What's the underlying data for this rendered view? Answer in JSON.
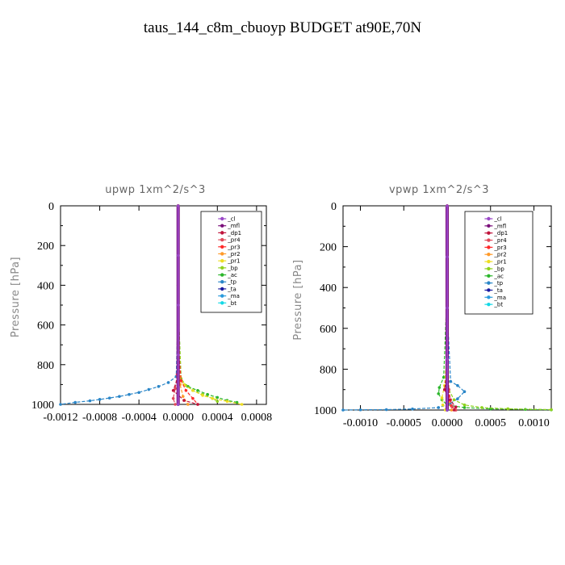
{
  "figure": {
    "title": "taus_144_c8m_cbuoyp  BUDGET at90E,70N"
  },
  "colors": {
    "cl": "#9a48c8",
    "mfl": "#7a0f7a",
    "dp1": "#c0143c",
    "pr4": "#e04a5a",
    "pr3": "#ff2a2a",
    "pr2": "#ff9a2a",
    "pr1": "#eedd22",
    "bp": "#8fd21e",
    "ac": "#2cb62c",
    "tp": "#2a86c8",
    "ta": "#1a1aa0",
    "ma": "#2a9adc",
    "bt": "#13d8e6"
  },
  "chart_data": [
    {
      "type": "line",
      "title": "upwp   1xm^2/s^3",
      "xlabel": "",
      "ylabel": "Pressure [hPa]",
      "xlim": [
        -0.0012,
        0.0009
      ],
      "ylim": [
        1000,
        0
      ],
      "xticks": [
        -0.0012,
        -0.0008,
        -0.0004,
        0.0,
        0.0004,
        0.0008
      ],
      "xtick_labels": [
        "-0.0012",
        "-0.0008",
        "-0.0004",
        "0.0000",
        "0.0004",
        "0.0008"
      ],
      "yticks": [
        0,
        200,
        400,
        600,
        800,
        1000
      ],
      "ytick_labels": [
        "0",
        "200",
        "400",
        "600",
        "800",
        "1000"
      ],
      "legend_position": "top-right",
      "series": [
        {
          "name": "_cl",
          "x": [
            0,
            0,
            0,
            0,
            0
          ],
          "y": [
            0,
            250,
            500,
            750,
            1000
          ]
        },
        {
          "name": "_mfl",
          "x": [
            0,
            0,
            0,
            0,
            0
          ],
          "y": [
            0,
            250,
            500,
            750,
            1000
          ]
        },
        {
          "name": "_dp1",
          "x": [
            0,
            0,
            0,
            0,
            -5e-05,
            6e-05,
            0.0002
          ],
          "y": [
            0,
            400,
            700,
            860,
            930,
            980,
            1000
          ]
        },
        {
          "name": "_pr4",
          "x": [
            0,
            0,
            -1e-05,
            -3e-05,
            -5e-05,
            -3e-05
          ],
          "y": [
            0,
            600,
            850,
            920,
            970,
            1000
          ]
        },
        {
          "name": "_pr3",
          "x": [
            0,
            0,
            3e-05,
            8e-05,
            0.00015,
            0.0002
          ],
          "y": [
            0,
            700,
            880,
            930,
            970,
            1000
          ]
        },
        {
          "name": "_pr2",
          "x": [
            0,
            0,
            2e-05,
            5e-05,
            0.0001
          ],
          "y": [
            0,
            700,
            900,
            960,
            1000
          ]
        },
        {
          "name": "_pr1",
          "x": [
            0,
            0,
            2e-05,
            6e-05,
            0.00015,
            0.00025,
            0.00035,
            0.0005,
            0.00065
          ],
          "y": [
            0,
            400,
            860,
            900,
            930,
            955,
            970,
            985,
            1000
          ]
        },
        {
          "name": "_bp",
          "x": [
            0,
            0,
            3e-05,
            8e-05,
            0.00015,
            0.00025,
            0.00035,
            0.0004
          ],
          "y": [
            0,
            500,
            870,
            905,
            930,
            950,
            970,
            985
          ]
        },
        {
          "name": "_ac",
          "x": [
            0,
            0,
            3e-05,
            0.0001,
            0.0002,
            0.0003,
            0.0004,
            0.0005,
            0.0006
          ],
          "y": [
            0,
            500,
            880,
            910,
            930,
            950,
            965,
            980,
            990
          ]
        },
        {
          "name": "_tp",
          "x": [
            0,
            0,
            -2e-05,
            -0.0001,
            -0.0002,
            -0.0003,
            -0.0004,
            -0.0005,
            -0.0006,
            -0.0007,
            -0.0008,
            -0.0009,
            -0.00105,
            -0.0012
          ],
          "y": [
            0,
            500,
            860,
            890,
            910,
            925,
            940,
            950,
            960,
            968,
            975,
            982,
            990,
            1000
          ]
        },
        {
          "name": "_ta",
          "x": [
            0,
            0,
            0,
            0,
            0
          ],
          "y": [
            0,
            250,
            500,
            750,
            1000
          ]
        },
        {
          "name": "_ma",
          "x": [
            0,
            0,
            0,
            0,
            0
          ],
          "y": [
            0,
            250,
            500,
            750,
            1000
          ]
        },
        {
          "name": "_bt",
          "x": [
            0,
            0,
            0,
            0,
            0
          ],
          "y": [
            0,
            250,
            500,
            750,
            1000
          ]
        }
      ]
    },
    {
      "type": "line",
      "title": "vpwp   1xm^2/s^3",
      "xlabel": "",
      "ylabel": "Pressure [hPa]",
      "xlim": [
        -0.0012,
        0.0012
      ],
      "ylim": [
        1000,
        0
      ],
      "xticks": [
        -0.001,
        -0.0005,
        0.0,
        0.0005,
        0.001
      ],
      "xtick_labels": [
        "-0.0010",
        "-0.0005",
        "0.0000",
        "0.0005",
        "0.0010"
      ],
      "yticks": [
        0,
        200,
        400,
        600,
        800,
        1000
      ],
      "ytick_labels": [
        "0",
        "200",
        "400",
        "600",
        "800",
        "1000"
      ],
      "legend_position": "top-right",
      "series": [
        {
          "name": "_cl",
          "x": [
            0,
            0,
            0,
            0,
            0
          ],
          "y": [
            0,
            250,
            500,
            750,
            1000
          ]
        },
        {
          "name": "_mfl",
          "x": [
            0,
            0,
            0,
            0,
            0
          ],
          "y": [
            0,
            250,
            500,
            750,
            1000
          ]
        },
        {
          "name": "_dp1",
          "x": [
            0,
            0,
            0,
            -3e-05,
            3e-05,
            0.0001,
            8e-05
          ],
          "y": [
            0,
            400,
            800,
            900,
            950,
            985,
            1000
          ]
        },
        {
          "name": "_pr4",
          "x": [
            0,
            0,
            2e-05,
            4e-05,
            6e-05,
            0.0001
          ],
          "y": [
            0,
            700,
            900,
            950,
            985,
            1000
          ]
        },
        {
          "name": "_pr3",
          "x": [
            0,
            0,
            2e-05,
            5e-05,
            0.0001
          ],
          "y": [
            0,
            700,
            930,
            980,
            1000
          ]
        },
        {
          "name": "_pr2",
          "x": [
            0,
            0,
            2e-05,
            5e-05
          ],
          "y": [
            0,
            800,
            960,
            1000
          ]
        },
        {
          "name": "_pr1",
          "x": [
            0,
            0,
            -3e-05,
            -6e-05,
            -5e-05,
            -2e-05
          ],
          "y": [
            0,
            700,
            880,
            940,
            975,
            1000
          ]
        },
        {
          "name": "_bp",
          "x": [
            0,
            0,
            2e-05,
            8e-05,
            0.0002,
            0.0004,
            0.0007,
            0.0012
          ],
          "y": [
            0,
            500,
            900,
            950,
            975,
            988,
            994,
            998
          ]
        },
        {
          "name": "_ac",
          "x": [
            0,
            0,
            -4e-05,
            -9e-05,
            -0.0001,
            -6e-05,
            0,
            0.0002,
            0.0005,
            0.0009,
            0.0012
          ],
          "y": [
            0,
            400,
            840,
            890,
            920,
            950,
            975,
            988,
            994,
            997,
            999
          ]
        },
        {
          "name": "_tp",
          "x": [
            0,
            0,
            4e-05,
            0.00012,
            0.0002,
            0.00012,
            3e-05,
            -0.0001,
            -0.0004,
            -0.0007,
            -0.001,
            -0.0012
          ],
          "y": [
            0,
            500,
            860,
            880,
            910,
            945,
            970,
            988,
            995,
            998,
            999,
            1000
          ]
        },
        {
          "name": "_ta",
          "x": [
            0,
            0,
            0,
            0,
            0
          ],
          "y": [
            0,
            250,
            500,
            750,
            1000
          ]
        },
        {
          "name": "_ma",
          "x": [
            0,
            0,
            0,
            0,
            0
          ],
          "y": [
            0,
            250,
            500,
            750,
            1000
          ]
        },
        {
          "name": "_bt",
          "x": [
            0,
            0,
            0,
            0,
            0
          ],
          "y": [
            0,
            250,
            500,
            750,
            1000
          ]
        }
      ]
    }
  ]
}
